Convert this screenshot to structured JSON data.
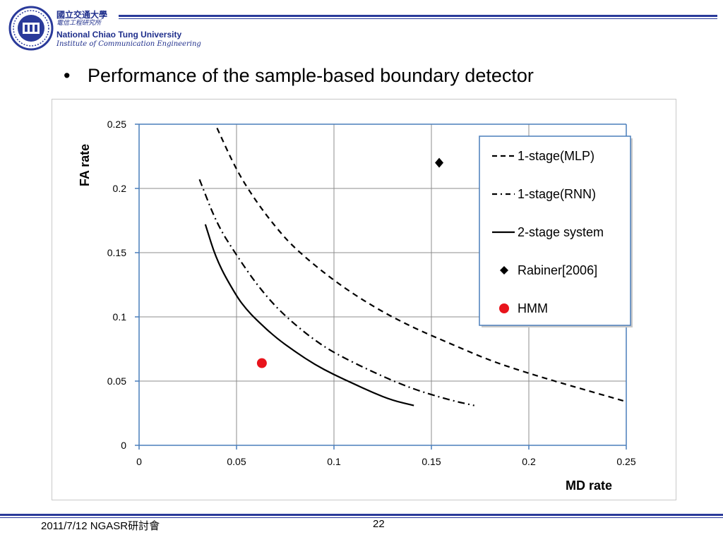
{
  "header": {
    "university_cn": "國立交通大學",
    "institute_cn": "電信工程研究所",
    "university_en": "National Chiao Tung University",
    "institute_en": "Institute of Communication Engineering"
  },
  "slide": {
    "bullet": "Performance of the sample-based boundary detector"
  },
  "chart_data": {
    "type": "line",
    "title": "",
    "xlabel": "MD rate",
    "ylabel": "FA rate",
    "xlim": [
      0,
      0.25
    ],
    "ylim": [
      0,
      0.25
    ],
    "xticks": [
      "0",
      "0.05",
      "0.1",
      "0.15",
      "0.2",
      "0.25"
    ],
    "yticks": [
      "0",
      "0.05",
      "0.1",
      "0.15",
      "0.2",
      "0.25"
    ],
    "grid": true,
    "legend_position": "top-right",
    "series": [
      {
        "name": "1-stage(MLP)",
        "style": "dashed",
        "x": [
          0.04,
          0.05,
          0.06,
          0.07,
          0.08,
          0.1,
          0.12,
          0.14,
          0.16,
          0.18,
          0.2,
          0.22,
          0.25
        ],
        "y": [
          0.247,
          0.214,
          0.19,
          0.17,
          0.153,
          0.128,
          0.108,
          0.092,
          0.079,
          0.066,
          0.056,
          0.047,
          0.034
        ]
      },
      {
        "name": "1-stage(RNN)",
        "style": "dash-dot",
        "x": [
          0.031,
          0.04,
          0.05,
          0.06,
          0.07,
          0.08,
          0.09,
          0.1,
          0.12,
          0.14,
          0.16,
          0.172
        ],
        "y": [
          0.207,
          0.172,
          0.148,
          0.126,
          0.108,
          0.094,
          0.082,
          0.072,
          0.057,
          0.044,
          0.035,
          0.031
        ]
      },
      {
        "name": "2-stage system",
        "style": "solid",
        "x": [
          0.034,
          0.04,
          0.05,
          0.055,
          0.06,
          0.07,
          0.08,
          0.09,
          0.1,
          0.11,
          0.12,
          0.13,
          0.141
        ],
        "y": [
          0.172,
          0.143,
          0.116,
          0.106,
          0.098,
          0.084,
          0.073,
          0.063,
          0.055,
          0.048,
          0.041,
          0.035,
          0.031
        ]
      },
      {
        "name": "Rabiner[2006]",
        "type": "scatter",
        "marker": "diamond",
        "x": [
          0.154
        ],
        "y": [
          0.22
        ]
      },
      {
        "name": "HMM",
        "type": "scatter",
        "marker": "circle",
        "color": "#e8141c",
        "x": [
          0.063
        ],
        "y": [
          0.064
        ]
      }
    ]
  },
  "footer": {
    "left": "2011/7/12 NGASR研討會",
    "page": "22"
  },
  "colors": {
    "header_blue": "#1f2f8c",
    "axis_blue": "#4a7ebb",
    "legend_border": "#4a7ebb",
    "hmm_red": "#e8141c"
  }
}
